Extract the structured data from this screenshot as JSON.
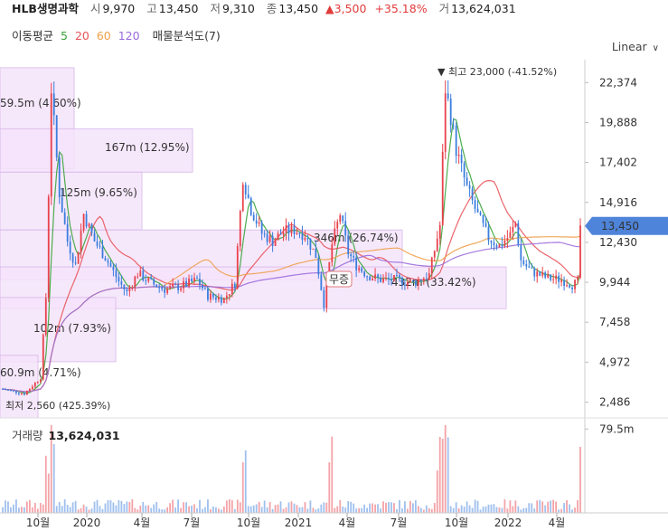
{
  "header": {
    "stock_name": "HLB생명과학",
    "open_label": "시",
    "open": "9,970",
    "high_label": "고",
    "high": "13,450",
    "low_label": "저",
    "low": "9,310",
    "close_label": "종",
    "close": "13,450",
    "change": "▲3,500",
    "change_pct": "+35.18%",
    "volume_label": "거",
    "volume": "13,624,031"
  },
  "ma_legend": {
    "title": "이동평균",
    "periods": [
      {
        "label": "5",
        "color": "#3aa43a"
      },
      {
        "label": "20",
        "color": "#e8535a"
      },
      {
        "label": "60",
        "color": "#f0a04b"
      },
      {
        "label": "120",
        "color": "#9b6bdb"
      }
    ],
    "volume_profile": "매물분석도(7)"
  },
  "scale_selector": {
    "label": "Linear"
  },
  "colors": {
    "up": "#e8414b",
    "down": "#3b7ddd",
    "ma5": "#3aa43a",
    "ma20": "#e8535a",
    "ma60": "#f0a04b",
    "ma120": "#9b6bdb",
    "profile_fill": "#f5e4fb",
    "profile_stroke": "#d9b8ea"
  },
  "chart_data": {
    "type": "candlestick",
    "x_tick_labels": [
      "10월",
      "2020",
      "4월",
      "7월",
      "10월",
      "2021",
      "4월",
      "7월",
      "10월",
      "2022",
      "4월"
    ],
    "price_axis_ticks": [
      "22,374",
      "19,888",
      "17,402",
      "14,916",
      "12,430",
      "9,944",
      "7,458",
      "4,972",
      "2,486"
    ],
    "price_range": [
      1500,
      23800
    ],
    "current_price_label": "13,450",
    "max_marker": "▼ 최고 23,000 (-41.52%)",
    "min_marker": "최저 2,560 (425.39%)",
    "badge": "무증",
    "volume_profile": [
      {
        "label": "59.5m (4.60%)",
        "from": 17000,
        "to": 23300
      },
      {
        "label": "167m (12.95%)",
        "from": 16800,
        "to": 19500
      },
      {
        "label": "125m (9.65%)",
        "from": 13200,
        "to": 16800
      },
      {
        "label": "346m (26.74%)",
        "from": 10100,
        "to": 13200
      },
      {
        "label": "432m (33.42%)",
        "from": 8300,
        "to": 10900
      },
      {
        "label": "102m (7.93%)",
        "from": 5000,
        "to": 9000
      },
      {
        "label": "60.9m (4.71%)",
        "from": 1500,
        "to": 5400
      }
    ],
    "volume_title": "거래량",
    "volume_value": "13,624,031",
    "volume_axis_label": "79.5m",
    "volume_range": [
      0,
      90
    ]
  }
}
